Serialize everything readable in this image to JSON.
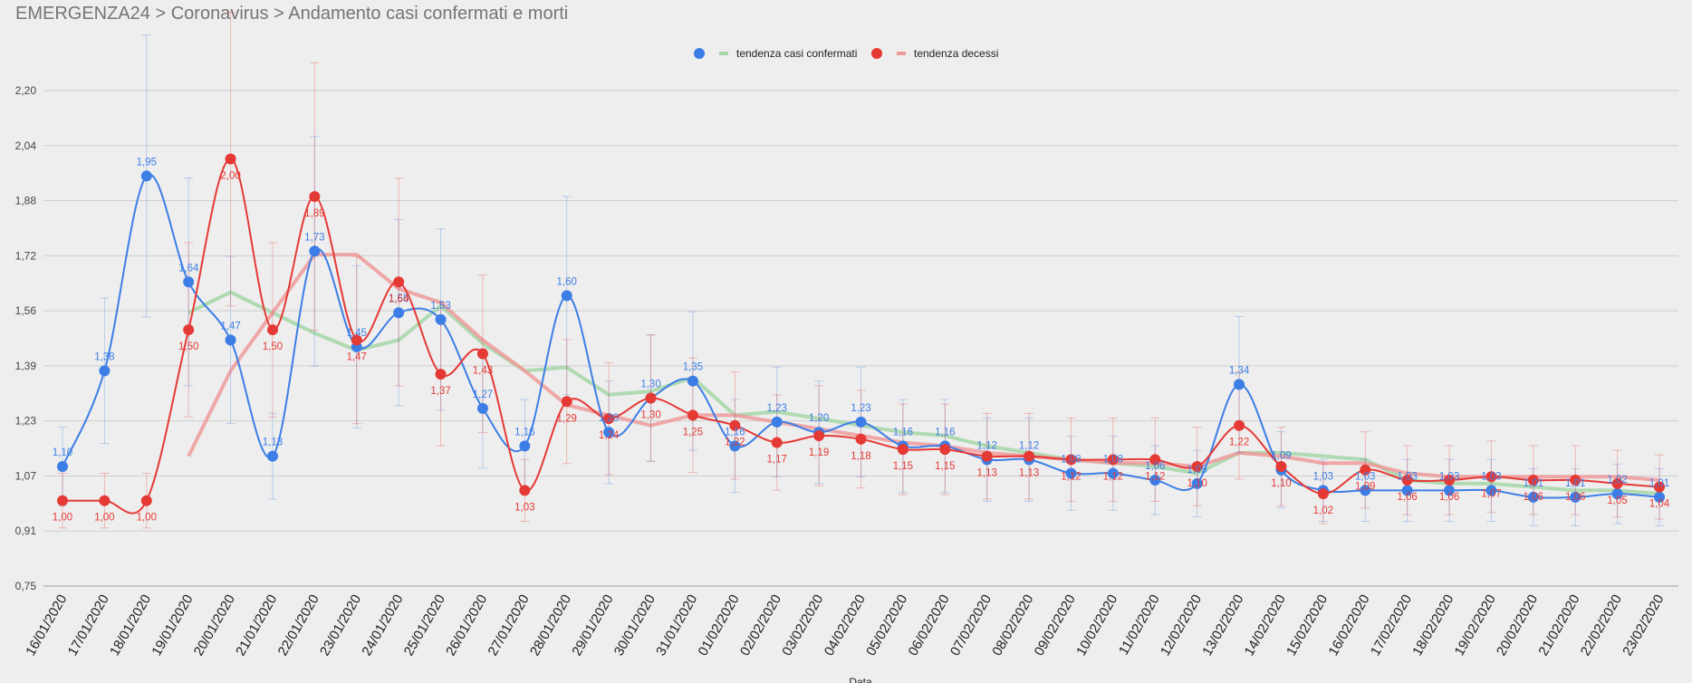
{
  "breadcrumb": "EMERGENZA24 > Coronavirus > Andamento casi confermati e morti",
  "chart_data": {
    "type": "line",
    "title": "",
    "xlabel": "Data",
    "ylabel": "",
    "ylim": [
      0.75,
      2.2
    ],
    "y_ticks": [
      "0,75",
      "0,91",
      "1,07",
      "1,23",
      "1,39",
      "1,56",
      "1,72",
      "1,88",
      "2,04",
      "2,20"
    ],
    "categories": [
      "16/01/2020",
      "17/01/2020",
      "18/01/2020",
      "19/01/2020",
      "20/01/2020",
      "21/01/2020",
      "22/01/2020",
      "23/01/2020",
      "24/01/2020",
      "25/01/2020",
      "26/01/2020",
      "27/01/2020",
      "28/01/2020",
      "29/01/2020",
      "30/01/2020",
      "31/01/2020",
      "01/02/2020",
      "02/02/2020",
      "03/02/2020",
      "04/02/2020",
      "05/02/2020",
      "06/02/2020",
      "07/02/2020",
      "08/02/2020",
      "09/02/2020",
      "10/02/2020",
      "11/02/2020",
      "12/02/2020",
      "13/02/2020",
      "14/02/2020",
      "15/02/2020",
      "16/02/2020",
      "17/02/2020",
      "18/02/2020",
      "19/02/2020",
      "20/02/2020",
      "21/02/2020",
      "22/02/2020",
      "23/02/2020"
    ],
    "grid": true,
    "legend_position": "top",
    "series": [
      {
        "name": "casi_confermati",
        "color": "#3c7ee6",
        "style": "smooth-line-with-points-and-error-bars",
        "values": [
          1.1,
          1.38,
          1.95,
          1.64,
          1.47,
          1.13,
          1.73,
          1.45,
          1.55,
          1.53,
          1.27,
          1.16,
          1.6,
          1.2,
          1.3,
          1.35,
          1.16,
          1.23,
          1.2,
          1.23,
          1.16,
          1.16,
          1.12,
          1.12,
          1.08,
          1.08,
          1.06,
          1.05,
          1.34,
          1.09,
          1.03,
          1.03,
          1.03,
          1.03,
          1.03,
          1.01,
          1.01,
          1.02,
          1.01
        ],
        "labels": [
          "1,10",
          "1,38",
          "1,95",
          "1,64",
          "1,47",
          "1,13",
          "1,73",
          "1,45",
          "1,55",
          "1,53",
          "1,27",
          "1,16",
          "1,60",
          "1,20",
          "1,30",
          "1,35",
          "1,16",
          "1,23",
          "1,20",
          "1,23",
          "1,16",
          "1,16",
          "1,12",
          "1,12",
          "1,08",
          "1,08",
          "1,06",
          "1,05",
          "1,34",
          "1,09",
          "1,03",
          "1,03",
          "1,03",
          "1,03",
          "1,03",
          "1,01",
          "1,01",
          "1,02",
          "1,01"
        ]
      },
      {
        "name": "decessi",
        "color": "#e53935",
        "style": "smooth-line-with-points-and-error-bars",
        "values": [
          1.0,
          1.0,
          1.0,
          1.5,
          2.0,
          1.5,
          1.89,
          1.47,
          1.64,
          1.37,
          1.43,
          1.03,
          1.29,
          1.24,
          1.3,
          1.25,
          1.22,
          1.17,
          1.19,
          1.18,
          1.15,
          1.15,
          1.13,
          1.13,
          1.12,
          1.12,
          1.12,
          1.1,
          1.22,
          1.1,
          1.02,
          1.09,
          1.06,
          1.06,
          1.07,
          1.06,
          1.06,
          1.05,
          1.04
        ],
        "labels": [
          "1,00",
          "1,00",
          "1,00",
          "1,50",
          "2,00",
          "1,50",
          "1,89",
          "1,47",
          "1,64",
          "1,37",
          "1,43",
          "1,03",
          "1,29",
          "1,24",
          "1,30",
          "1,25",
          "1,22",
          "1,17",
          "1,19",
          "1,18",
          "1,15",
          "1,15",
          "1,13",
          "1,13",
          "1,12",
          "1,12",
          "1,12",
          "1,10",
          "1,22",
          "1,10",
          "1,02",
          "1,09",
          "1,06",
          "1,06",
          "1,07",
          "1,06",
          "1,06",
          "1,05",
          "1,04"
        ]
      },
      {
        "name": "tendenza casi confermati",
        "color": "#a5d6a7",
        "style": "trend-line",
        "values": [
          null,
          null,
          null,
          1.55,
          1.61,
          1.55,
          1.49,
          1.44,
          1.47,
          1.57,
          1.46,
          1.38,
          1.39,
          1.31,
          1.32,
          1.36,
          1.25,
          1.26,
          1.24,
          1.22,
          1.2,
          1.19,
          1.16,
          1.14,
          1.12,
          1.11,
          1.1,
          1.08,
          1.14,
          1.14,
          1.13,
          1.12,
          1.06,
          1.05,
          1.05,
          1.04,
          1.03,
          1.03,
          1.02
        ]
      },
      {
        "name": "tendenza decessi",
        "color": "#ef9a9a",
        "style": "trend-line",
        "values": [
          null,
          null,
          null,
          1.13,
          1.38,
          1.55,
          1.72,
          1.72,
          1.62,
          1.58,
          1.47,
          1.38,
          1.28,
          1.25,
          1.22,
          1.25,
          1.25,
          1.23,
          1.21,
          1.19,
          1.17,
          1.16,
          1.14,
          1.13,
          1.12,
          1.11,
          1.11,
          1.1,
          1.14,
          1.13,
          1.11,
          1.11,
          1.08,
          1.07,
          1.07,
          1.07,
          1.07,
          1.07,
          1.06
        ]
      }
    ],
    "legend": [
      {
        "label": "tendenza casi confermati",
        "point_color": "#3c7ee6",
        "line_color": "#a5d6a7"
      },
      {
        "label": "tendenza decessi",
        "point_color": "#e53935",
        "line_color": "#ef9a9a"
      }
    ]
  }
}
